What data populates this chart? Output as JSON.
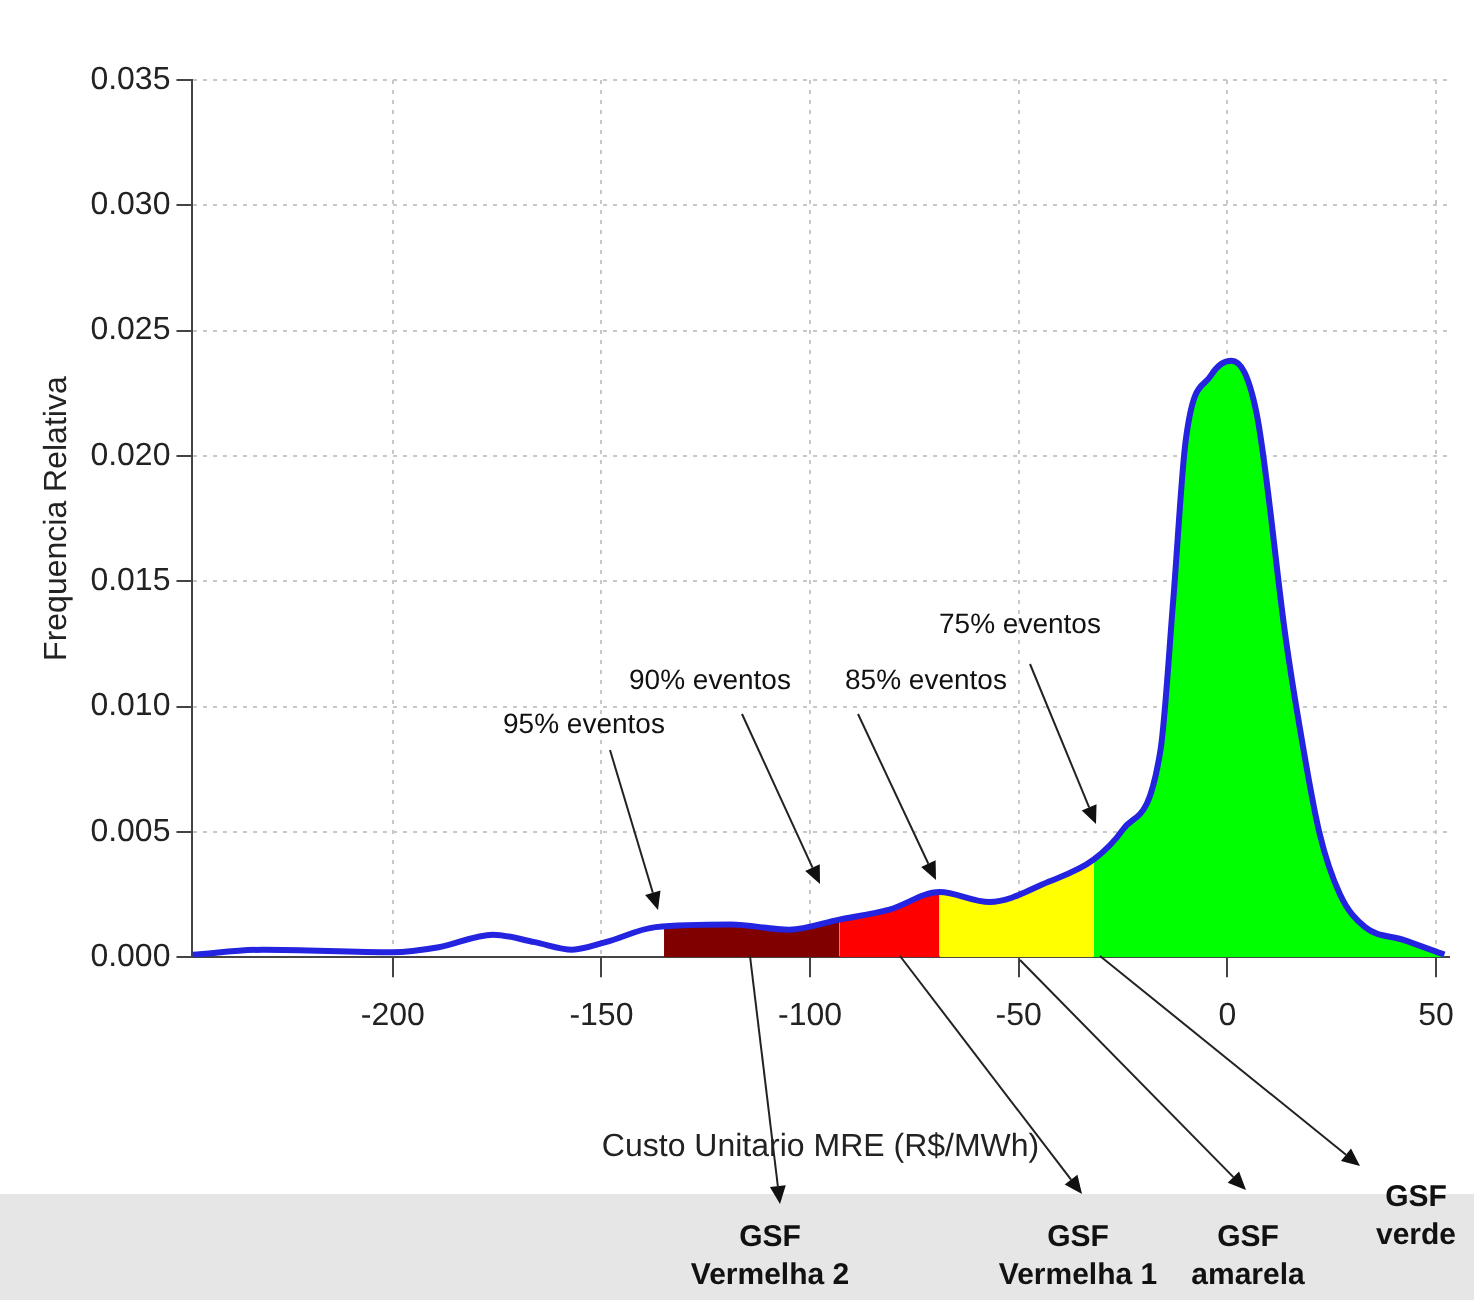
{
  "chart_data": {
    "type": "area",
    "xlabel": "Custo Unitario MRE (R$/MWh)",
    "ylabel": "Frequencia Relativa",
    "xlim": [
      -248,
      53
    ],
    "xticks": [
      -200,
      -150,
      -100,
      -50,
      0,
      50
    ],
    "ylim": [
      0,
      0.035
    ],
    "yticks": [
      {
        "value": 0,
        "label": "0.000"
      },
      {
        "value": 0.005,
        "label": "0.005"
      },
      {
        "value": 0.01,
        "label": "0.010"
      },
      {
        "value": 0.015,
        "label": "0.015"
      },
      {
        "value": 0.02,
        "label": "0.020"
      },
      {
        "value": 0.025,
        "label": "0.025"
      },
      {
        "value": 0.03,
        "label": "0.030"
      },
      {
        "value": 0.035,
        "label": "0.035"
      }
    ],
    "grid": true,
    "legend": false,
    "series": [
      {
        "type": "line",
        "color": "#2323e0",
        "x": [
          -248,
          -231,
          -200,
          -189,
          -176,
          -166,
          -157,
          -149,
          -137,
          -119,
          -105,
          -93,
          -81,
          -69,
          -57,
          -43,
          -32,
          -25,
          -16,
          -13,
          -10,
          -4,
          1,
          7,
          14,
          17,
          22,
          27,
          33,
          42,
          52
        ],
        "values": [
          0.0001,
          0.0003,
          0.0002,
          0.0004,
          0.0009,
          0.0006,
          0.0003,
          0.0006,
          0.0012,
          0.0013,
          0.0011,
          0.0015,
          0.0019,
          0.0026,
          0.0022,
          0.003,
          0.0039,
          0.0051,
          0.0083,
          0.0142,
          0.0206,
          0.0232,
          0.0238,
          0.0217,
          0.0127,
          0.0095,
          0.005,
          0.0025,
          0.0012,
          0.0007,
          0.0001
        ]
      },
      {
        "type": "area",
        "color": "#800000",
        "x": [
          -135,
          -119,
          -105,
          -93
        ],
        "values": [
          0.0012,
          0.0013,
          0.0011,
          0.0015
        ]
      },
      {
        "type": "area",
        "color": "#ff0000",
        "x": [
          -93,
          -81,
          -69
        ],
        "values": [
          0.0015,
          0.0019,
          0.0026
        ]
      },
      {
        "type": "area",
        "color": "#ffff00",
        "x": [
          -69,
          -57,
          -43,
          -32
        ],
        "values": [
          0.0026,
          0.0022,
          0.003,
          0.0039
        ]
      },
      {
        "type": "area",
        "color": "#00ff00",
        "x": [
          -32,
          -25,
          -16,
          -13,
          -10,
          -4,
          1,
          7,
          14,
          17,
          22,
          27,
          33,
          42,
          52
        ],
        "values": [
          0.0039,
          0.0051,
          0.0083,
          0.0142,
          0.0206,
          0.0232,
          0.0238,
          0.0217,
          0.0127,
          0.0095,
          0.005,
          0.0025,
          0.0012,
          0.0007,
          0.0001
        ]
      }
    ],
    "annotations": [
      "95% eventos",
      "90% eventos",
      "85% eventos",
      "75% eventos",
      "GSF\nVermelha 2",
      "GSF\nVermelha 1",
      "GSF\namarela",
      "GSF\nverde"
    ]
  }
}
